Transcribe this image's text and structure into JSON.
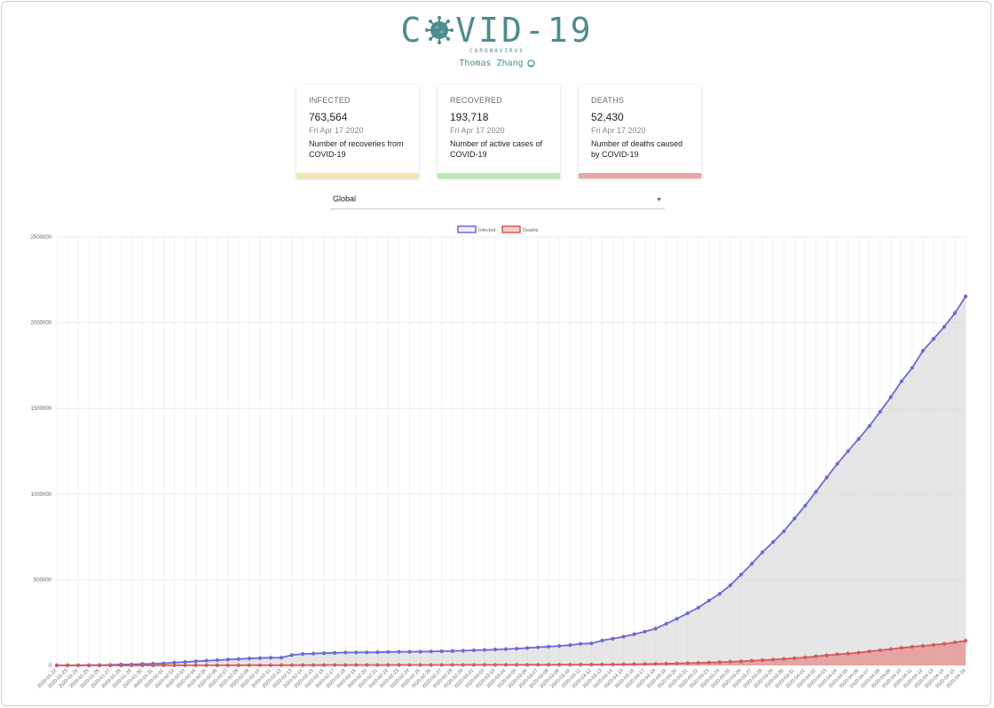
{
  "header": {
    "title_left": "C",
    "title_right": "VID-19",
    "subtitle": "CORONAVIRUS",
    "author": "Thomas Zhang",
    "virus_icon": "virus-icon",
    "github_icon": "github-icon"
  },
  "cards": [
    {
      "label": "INFECTED",
      "value": "763,564",
      "date": "Fri Apr 17 2020",
      "description": "Number of recoveries from COVID-19",
      "bar_color": "#f3e6b0"
    },
    {
      "label": "RECOVERED",
      "value": "193,718",
      "date": "Fri Apr 17 2020",
      "description": "Number of active cases of COVID-19",
      "bar_color": "#b6ecb0"
    },
    {
      "label": "DEATHS",
      "value": "52,430",
      "date": "Fri Apr 17 2020",
      "description": "Number of deaths caused by COVID-19",
      "bar_color": "#eba3a8"
    }
  ],
  "country_select": {
    "value": "Global"
  },
  "chart_data": {
    "type": "line",
    "legend_position": "top",
    "grid": true,
    "ylim": [
      0,
      2500000
    ],
    "yticks": [
      "2500000",
      "2000000",
      "1500000",
      "1000000",
      "500000",
      "0"
    ],
    "x": [
      "2020-01-22",
      "2020-01-23",
      "2020-01-24",
      "2020-01-25",
      "2020-01-26",
      "2020-01-27",
      "2020-01-28",
      "2020-01-29",
      "2020-01-30",
      "2020-01-31",
      "2020-02-01",
      "2020-02-02",
      "2020-02-03",
      "2020-02-04",
      "2020-02-05",
      "2020-02-06",
      "2020-02-07",
      "2020-02-08",
      "2020-02-09",
      "2020-02-10",
      "2020-02-11",
      "2020-02-12",
      "2020-02-13",
      "2020-02-14",
      "2020-02-15",
      "2020-02-16",
      "2020-02-17",
      "2020-02-18",
      "2020-02-19",
      "2020-02-20",
      "2020-02-21",
      "2020-02-22",
      "2020-02-23",
      "2020-02-24",
      "2020-02-25",
      "2020-02-26",
      "2020-02-27",
      "2020-02-28",
      "2020-02-29",
      "2020-03-01",
      "2020-03-02",
      "2020-03-03",
      "2020-03-04",
      "2020-03-05",
      "2020-03-06",
      "2020-03-07",
      "2020-03-08",
      "2020-03-09",
      "2020-03-10",
      "2020-03-11",
      "2020-03-12",
      "2020-03-13",
      "2020-03-14",
      "2020-03-15",
      "2020-03-16",
      "2020-03-17",
      "2020-03-18",
      "2020-03-19",
      "2020-03-20",
      "2020-03-21",
      "2020-03-22",
      "2020-03-23",
      "2020-03-24",
      "2020-03-25",
      "2020-03-26",
      "2020-03-27",
      "2020-03-28",
      "2020-03-29",
      "2020-03-30",
      "2020-03-31",
      "2020-04-01",
      "2020-04-02",
      "2020-04-03",
      "2020-04-04",
      "2020-04-05",
      "2020-04-06",
      "2020-04-07",
      "2020-04-08",
      "2020-04-09",
      "2020-04-10",
      "2020-04-11",
      "2020-04-12",
      "2020-04-13",
      "2020-04-14",
      "2020-04-15",
      "2020-04-16"
    ],
    "series": [
      {
        "name": "Infected",
        "color": "#6b6bd6",
        "fill": "rgba(210,210,210,0.55)",
        "values": [
          555,
          654,
          941,
          1434,
          2118,
          2927,
          5578,
          6166,
          8234,
          9927,
          12038,
          16787,
          19881,
          23892,
          27635,
          30794,
          34391,
          37120,
          40150,
          42762,
          44802,
          45221,
          60368,
          66885,
          69030,
          71224,
          73258,
          75136,
          75639,
          76197,
          76819,
          78572,
          78958,
          79561,
          80406,
          81388,
          82746,
          84112,
          86011,
          88369,
          90306,
          92840,
          95120,
          97886,
          101801,
          105847,
          109821,
          113590,
          118620,
          125875,
          128352,
          145205,
          156101,
          167454,
          181574,
          197102,
          214821,
          242570,
          272208,
          304507,
          336953,
          378235,
          418045,
          467653,
          529591,
          593291,
          660706,
          720117,
          782365,
          857487,
          932605,
          1013157,
          1095917,
          1176060,
          1249754,
          1321481,
          1396476,
          1479804,
          1565278,
          1657526,
          1735650,
          1834721,
          1904838,
          1975581,
          2056055,
          2152437
        ]
      },
      {
        "name": "Deaths",
        "color": "#d65a5a",
        "fill": "rgba(230,110,110,0.55)",
        "values": [
          17,
          18,
          26,
          42,
          56,
          82,
          131,
          133,
          171,
          213,
          259,
          362,
          426,
          492,
          564,
          634,
          719,
          806,
          906,
          1013,
          1113,
          1118,
          1371,
          1523,
          1666,
          1770,
          1868,
          2007,
          2122,
          2247,
          2251,
          2458,
          2469,
          2629,
          2708,
          2770,
          2814,
          2872,
          2941,
          2996,
          3085,
          3160,
          3254,
          3348,
          3460,
          3558,
          3802,
          3988,
          4262,
          4615,
          4720,
          5404,
          5819,
          6440,
          7126,
          7905,
          8733,
          9867,
          11299,
          12973,
          14623,
          16497,
          18615,
          21181,
          23970,
          27198,
          30652,
          33925,
          37582,
          42107,
          46809,
          52983,
          58787,
          64606,
          69374,
          74565,
          81865,
          88338,
          95455,
          102525,
          108502,
          114091,
          119482,
          125984,
          134177,
          143800
        ]
      }
    ]
  }
}
